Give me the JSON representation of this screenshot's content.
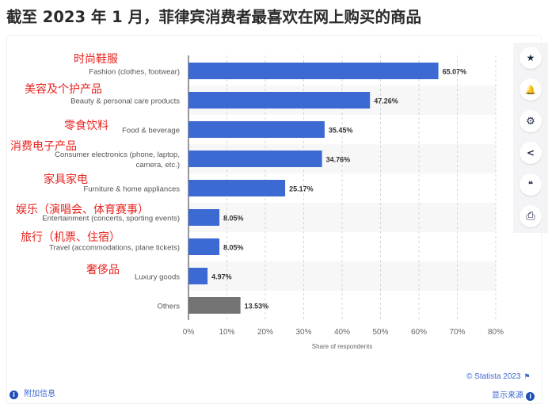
{
  "page": {
    "title": "截至 2023 年 1 月，菲律宾消费者最喜欢在网上购买的商品"
  },
  "toolbar": {
    "buttons": [
      {
        "name": "star-icon",
        "glyph": "★"
      },
      {
        "name": "bell-icon",
        "glyph": "🔔"
      },
      {
        "name": "gear-icon",
        "glyph": "⚙"
      },
      {
        "name": "share-icon",
        "glyph": "<"
      },
      {
        "name": "quote-icon",
        "glyph": "❝"
      },
      {
        "name": "print-icon",
        "glyph": "⎙"
      }
    ]
  },
  "footer": {
    "credit": "© Statista 2023",
    "source_label": "显示来源",
    "info_label": "附加信息",
    "info_glyph": "i"
  },
  "colors": {
    "bar": "#3c6ad2",
    "others_bar": "#737373",
    "annotation": "#e8231f",
    "band": "#f7f7f7"
  },
  "chart_data": {
    "type": "bar",
    "orientation": "horizontal",
    "title": "",
    "xlabel": "Share of respondents",
    "ylabel": "",
    "xlim": [
      0,
      80
    ],
    "x_ticks": [
      "0%",
      "10%",
      "20%",
      "30%",
      "40%",
      "50%",
      "60%",
      "70%",
      "80%"
    ],
    "grid": "vertical dashed",
    "categories": [
      {
        "label_lines": [
          "Fashion (clothes, footwear)"
        ],
        "annotation": "时尚鞋服",
        "value": 65.07,
        "value_label": "65.07%",
        "kind": "normal"
      },
      {
        "label_lines": [
          "Beauty & personal care products"
        ],
        "annotation": "美容及个护产品",
        "value": 47.26,
        "value_label": "47.26%",
        "kind": "normal"
      },
      {
        "label_lines": [
          "Food & beverage"
        ],
        "annotation": "零食饮料",
        "value": 35.45,
        "value_label": "35.45%",
        "kind": "normal"
      },
      {
        "label_lines": [
          "Consumer electronics (phone, laptop,",
          "camera, etc.)"
        ],
        "annotation": "消费电子产品",
        "value": 34.76,
        "value_label": "34.76%",
        "kind": "normal"
      },
      {
        "label_lines": [
          "Furniture & home appliances"
        ],
        "annotation": "家具家电",
        "value": 25.17,
        "value_label": "25.17%",
        "kind": "normal"
      },
      {
        "label_lines": [
          "Entertainment (concerts, sporting events)"
        ],
        "annotation": "娱乐（演唱会、体育赛事）",
        "value": 8.05,
        "value_label": "8.05%",
        "kind": "normal"
      },
      {
        "label_lines": [
          "Travel (accommodations, plane tickets)"
        ],
        "annotation": "旅行（机票、住宿）",
        "value": 8.05,
        "value_label": "8.05%",
        "kind": "normal"
      },
      {
        "label_lines": [
          "Luxury goods"
        ],
        "annotation": "奢侈品",
        "value": 4.97,
        "value_label": "4.97%",
        "kind": "normal"
      },
      {
        "label_lines": [
          "Others"
        ],
        "annotation": "",
        "value": 13.53,
        "value_label": "13.53%",
        "kind": "others"
      }
    ]
  }
}
